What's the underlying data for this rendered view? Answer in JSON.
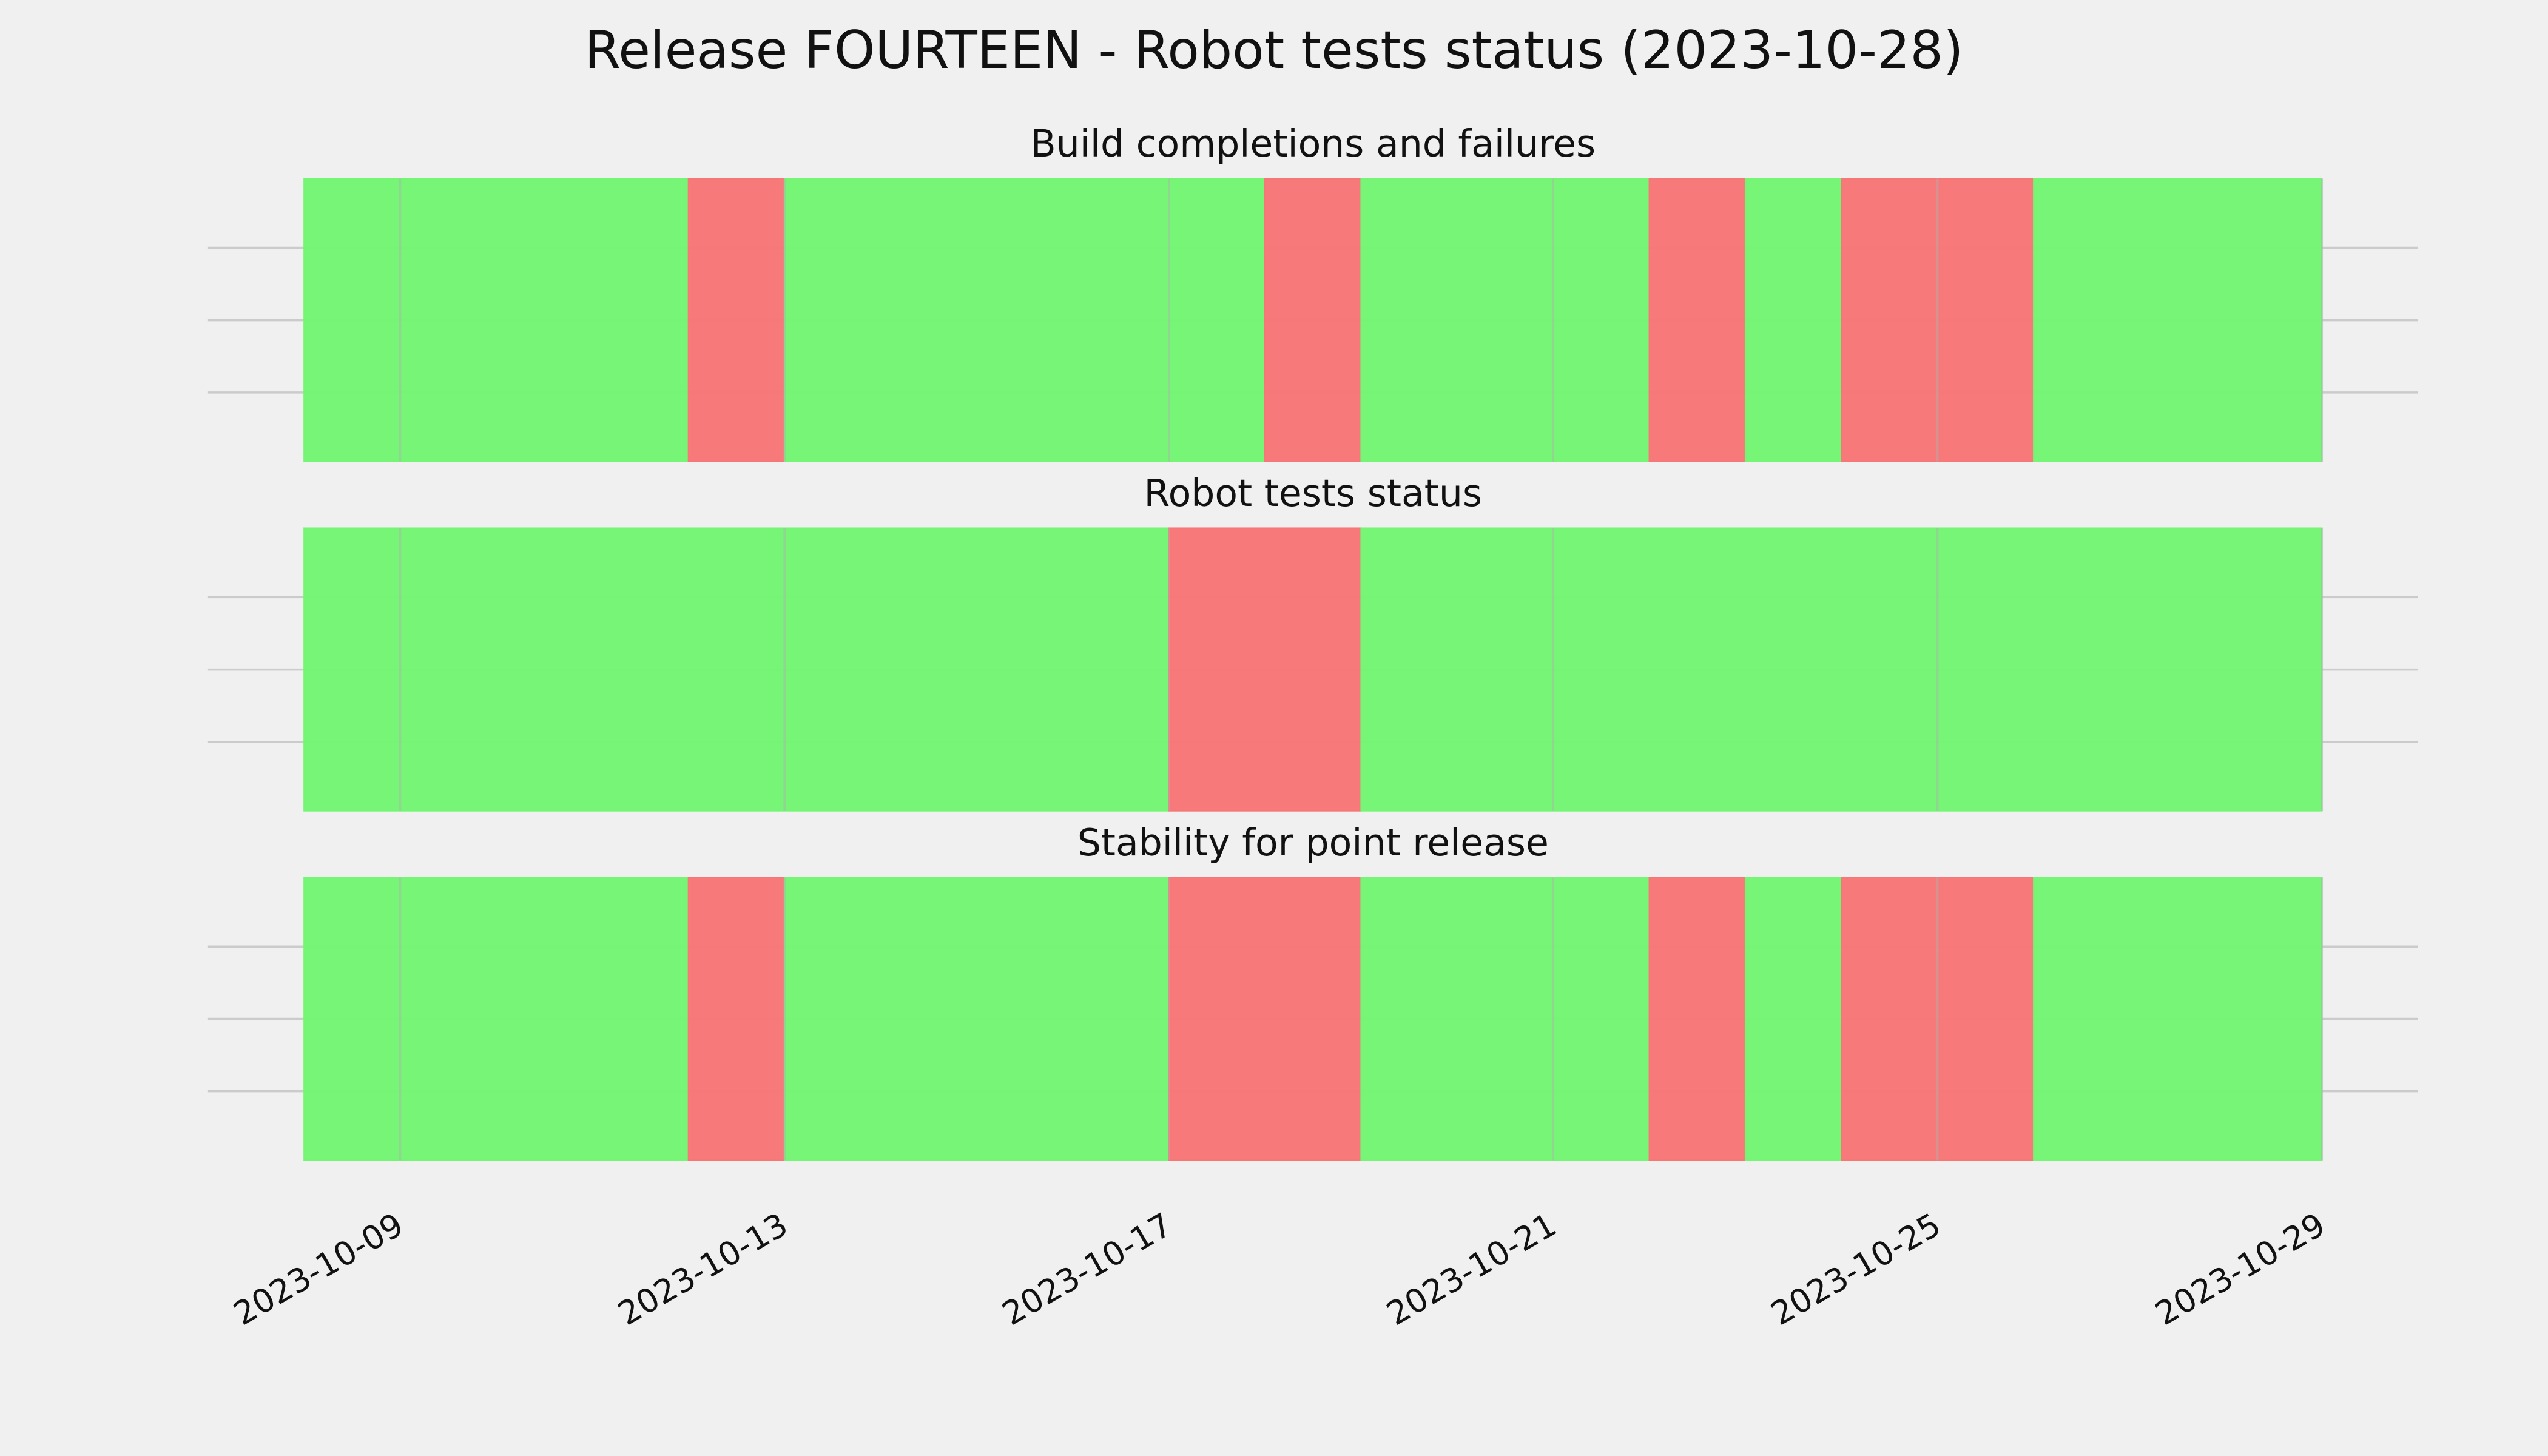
{
  "title": "Release FOURTEEN - Robot tests status (2023-10-28)",
  "chart_data": [
    {
      "type": "timeline",
      "title": "Build completions and failures",
      "xlim": [
        "2023-10-07",
        "2023-10-30"
      ],
      "xticks": [
        "2023-10-09",
        "2023-10-13",
        "2023-10-17",
        "2023-10-21",
        "2023-10-25",
        "2023-10-29"
      ],
      "segments": [
        {
          "start": "2023-10-08",
          "end": "2023-10-12",
          "color": "#74f574"
        },
        {
          "start": "2023-10-12",
          "end": "2023-10-13",
          "color": "#f77676"
        },
        {
          "start": "2023-10-13",
          "end": "2023-10-18",
          "color": "#74f574"
        },
        {
          "start": "2023-10-18",
          "end": "2023-10-19",
          "color": "#f77676"
        },
        {
          "start": "2023-10-19",
          "end": "2023-10-22",
          "color": "#74f574"
        },
        {
          "start": "2023-10-22",
          "end": "2023-10-23",
          "color": "#f77676"
        },
        {
          "start": "2023-10-23",
          "end": "2023-10-24",
          "color": "#74f574"
        },
        {
          "start": "2023-10-24",
          "end": "2023-10-26",
          "color": "#f77676"
        },
        {
          "start": "2023-10-26",
          "end": "2023-10-29",
          "color": "#74f574"
        }
      ]
    },
    {
      "type": "timeline",
      "title": "Robot tests status",
      "xlim": [
        "2023-10-07",
        "2023-10-30"
      ],
      "xticks": [
        "2023-10-09",
        "2023-10-13",
        "2023-10-17",
        "2023-10-21",
        "2023-10-25",
        "2023-10-29"
      ],
      "segments": [
        {
          "start": "2023-10-08",
          "end": "2023-10-17",
          "color": "#74f574"
        },
        {
          "start": "2023-10-17",
          "end": "2023-10-19",
          "color": "#f77676"
        },
        {
          "start": "2023-10-19",
          "end": "2023-10-29",
          "color": "#74f574"
        }
      ]
    },
    {
      "type": "timeline",
      "title": "Stability for point release",
      "xlim": [
        "2023-10-07",
        "2023-10-30"
      ],
      "xticks": [
        "2023-10-09",
        "2023-10-13",
        "2023-10-17",
        "2023-10-21",
        "2023-10-25",
        "2023-10-29"
      ],
      "segments": [
        {
          "start": "2023-10-08",
          "end": "2023-10-12",
          "color": "#74f574"
        },
        {
          "start": "2023-10-12",
          "end": "2023-10-13",
          "color": "#f77676"
        },
        {
          "start": "2023-10-13",
          "end": "2023-10-17",
          "color": "#74f574"
        },
        {
          "start": "2023-10-17",
          "end": "2023-10-19",
          "color": "#f77676"
        },
        {
          "start": "2023-10-19",
          "end": "2023-10-22",
          "color": "#74f574"
        },
        {
          "start": "2023-10-22",
          "end": "2023-10-23",
          "color": "#f77676"
        },
        {
          "start": "2023-10-23",
          "end": "2023-10-24",
          "color": "#74f574"
        },
        {
          "start": "2023-10-24",
          "end": "2023-10-26",
          "color": "#f77676"
        },
        {
          "start": "2023-10-26",
          "end": "2023-10-29",
          "color": "#74f574"
        }
      ]
    }
  ]
}
